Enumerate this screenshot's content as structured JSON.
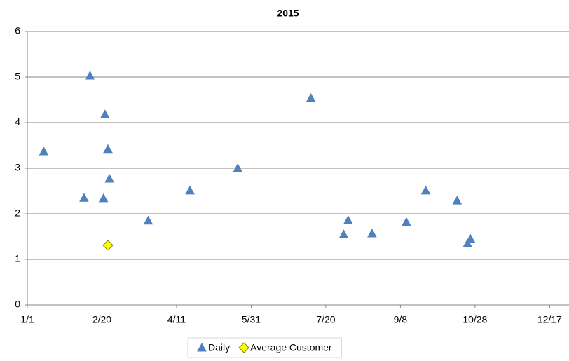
{
  "chart_data": {
    "type": "scatter",
    "title": "2015",
    "xlim": [
      0,
      363
    ],
    "xticks": [
      {
        "value": 0,
        "label": "1/1"
      },
      {
        "value": 50,
        "label": "2/20"
      },
      {
        "value": 100,
        "label": "4/11"
      },
      {
        "value": 150,
        "label": "5/31"
      },
      {
        "value": 200,
        "label": "7/20"
      },
      {
        "value": 250,
        "label": "9/8"
      },
      {
        "value": 300,
        "label": "10/28"
      },
      {
        "value": 350,
        "label": "12/17"
      }
    ],
    "ylim": [
      0,
      6
    ],
    "yticks": [
      0,
      1,
      2,
      3,
      4,
      5,
      6
    ],
    "grid": true,
    "legend": "bottom",
    "series": [
      {
        "name": "Daily",
        "color": "#4f81bd",
        "marker": "triangle",
        "x": [
          11,
          42,
          38,
          52,
          54,
          51,
          55,
          81,
          109,
          141,
          190,
          212,
          215,
          231,
          254,
          267,
          288,
          295,
          297
        ],
        "values": [
          3.37,
          5.03,
          2.35,
          4.18,
          3.42,
          2.34,
          2.77,
          1.85,
          2.51,
          3.0,
          4.54,
          1.55,
          1.86,
          1.57,
          1.82,
          2.51,
          2.29,
          1.35,
          1.45
        ]
      },
      {
        "name": "Average Customer",
        "color": "#ffff00",
        "marker": "diamond",
        "x": [
          54
        ],
        "values": [
          1.31
        ]
      }
    ]
  }
}
